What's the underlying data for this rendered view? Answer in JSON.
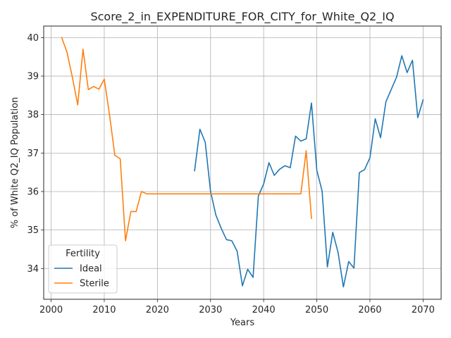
{
  "chart_data": {
    "type": "line",
    "title": "Score_2_in_EXPENDITURE_FOR_CITY_for_White_Q2_IQ",
    "xlabel": "Years",
    "ylabel": "% of White Q2_IQ Population",
    "xlim": [
      1998.6,
      2073.4
    ],
    "ylim": [
      33.2,
      40.3
    ],
    "xticks": [
      2000,
      2010,
      2020,
      2030,
      2040,
      2050,
      2060,
      2070
    ],
    "yticks": [
      34,
      35,
      36,
      37,
      38,
      39,
      40
    ],
    "grid": true,
    "legend": {
      "title": "Fertility",
      "position": "lower-left"
    },
    "series": [
      {
        "name": "Ideal",
        "color": "#1f77b4",
        "x": [
          2027,
          2028,
          2029,
          2030,
          2031,
          2032,
          2033,
          2034,
          2035,
          2036,
          2037,
          2038,
          2039,
          2040,
          2041,
          2042,
          2043,
          2044,
          2045,
          2046,
          2047,
          2048,
          2049,
          2050,
          2051,
          2052,
          2053,
          2054,
          2055,
          2056,
          2057,
          2058,
          2059,
          2060,
          2061,
          2062,
          2063,
          2064,
          2065,
          2066,
          2067,
          2068,
          2069,
          2070
        ],
        "y": [
          36.54,
          37.62,
          37.28,
          36.0,
          35.39,
          35.05,
          34.75,
          34.72,
          34.45,
          33.55,
          33.98,
          33.77,
          35.88,
          36.2,
          36.75,
          36.42,
          36.58,
          36.67,
          36.62,
          37.44,
          37.31,
          37.37,
          38.3,
          36.55,
          36.01,
          34.04,
          34.94,
          34.42,
          33.52,
          34.18,
          34.01,
          36.49,
          36.57,
          36.88,
          37.89,
          37.4,
          38.33,
          38.65,
          38.97,
          39.53,
          39.09,
          39.41,
          37.92,
          38.38
        ]
      },
      {
        "name": "Sterile",
        "color": "#ff7f0e",
        "x": [
          2002,
          2003,
          2004,
          2005,
          2006,
          2007,
          2008,
          2009,
          2010,
          2011,
          2012,
          2013,
          2014,
          2015,
          2016,
          2017,
          2018,
          2019,
          2020,
          2021,
          2022,
          2023,
          2024,
          2025,
          2026,
          2027,
          2028,
          2029,
          2030,
          2031,
          2032,
          2033,
          2034,
          2035,
          2036,
          2037,
          2038,
          2039,
          2040,
          2041,
          2042,
          2043,
          2044,
          2045,
          2046,
          2047,
          2048,
          2049
        ],
        "y": [
          40.0,
          39.61,
          38.97,
          38.25,
          39.7,
          38.65,
          38.73,
          38.66,
          38.92,
          37.98,
          36.94,
          36.85,
          34.72,
          35.48,
          35.48,
          36.0,
          35.94,
          35.94,
          35.94,
          35.94,
          35.94,
          35.94,
          35.94,
          35.94,
          35.94,
          35.94,
          35.94,
          35.94,
          35.94,
          35.94,
          35.94,
          35.94,
          35.94,
          35.94,
          35.94,
          35.94,
          35.94,
          35.94,
          35.94,
          35.94,
          35.94,
          35.94,
          35.94,
          35.94,
          35.94,
          35.94,
          37.06,
          35.3
        ]
      }
    ]
  }
}
